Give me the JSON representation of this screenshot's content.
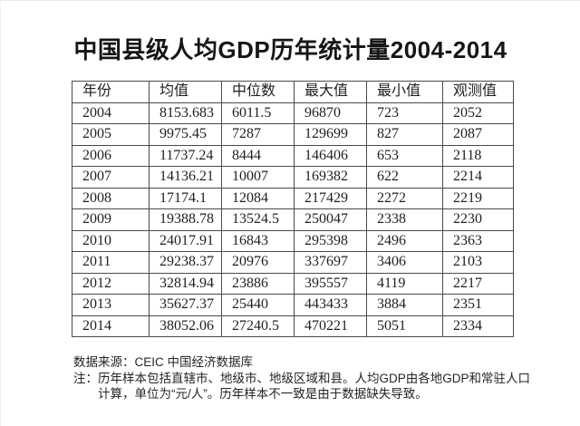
{
  "title": "中国县级人均GDP历年统计量2004-2014",
  "chart_data": {
    "type": "table",
    "title": "中国县级人均GDP历年统计量2004-2014",
    "columns": [
      "年份",
      "均值",
      "中位数",
      "最大值",
      "最小值",
      "观测值"
    ],
    "rows": [
      [
        "2004",
        "8153.683",
        "6011.5",
        "96870",
        "723",
        "2052"
      ],
      [
        "2005",
        "9975.45",
        "7287",
        "129699",
        "827",
        "2087"
      ],
      [
        "2006",
        "11737.24",
        "8444",
        "146406",
        "653",
        "2118"
      ],
      [
        "2007",
        "14136.21",
        "10007",
        "169382",
        "622",
        "2214"
      ],
      [
        "2008",
        "17174.1",
        "12084",
        "217429",
        "2272",
        "2219"
      ],
      [
        "2009",
        "19388.78",
        "13524.5",
        "250047",
        "2338",
        "2230"
      ],
      [
        "2010",
        "24017.91",
        "16843",
        "295398",
        "2496",
        "2363"
      ],
      [
        "2011",
        "29238.37",
        "20976",
        "337697",
        "3406",
        "2103"
      ],
      [
        "2012",
        "32814.94",
        "23886",
        "395557",
        "4119",
        "2217"
      ],
      [
        "2013",
        "35627.37",
        "25440",
        "443433",
        "3884",
        "2351"
      ],
      [
        "2014",
        "38052.06",
        "27240.5",
        "470221",
        "5051",
        "2334"
      ]
    ],
    "units_note": "单位为“元/人”",
    "grid": true,
    "legend": false
  },
  "footer": {
    "source": "数据来源：CEIC 中国经济数据库",
    "note": "注：历年样本包括直辖市、地级市、地级区域和县。人均GDP由各地GDP和常驻人口计算，单位为“元/人”。历年样本不一致是由于数据缺失导致。"
  }
}
